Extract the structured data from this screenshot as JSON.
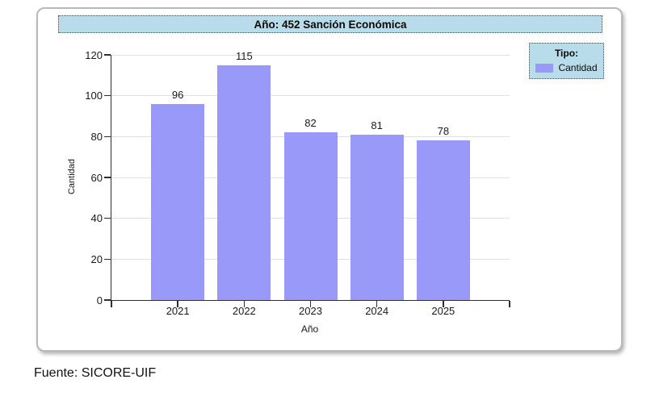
{
  "chart": {
    "title": "Año: 452 Sanción Económica"
  },
  "legend": {
    "title": "Tipo:",
    "items": [
      {
        "label": "Cantidad",
        "color": "#9999fa"
      }
    ]
  },
  "footer": {
    "source": "Fuente: SICORE-UIF"
  },
  "colors": {
    "bar_fill": "#9999fa",
    "panel_blue": "#b9dcea",
    "gridline": "#e0e0e0",
    "axis": "#2f2f2f"
  },
  "chart_data": {
    "type": "bar",
    "title": "Año: 452 Sanción Económica",
    "categories": [
      "2021",
      "2022",
      "2023",
      "2024",
      "2025"
    ],
    "values": [
      96,
      115,
      82,
      81,
      78
    ],
    "series": [
      {
        "name": "Cantidad",
        "values": [
          96,
          115,
          82,
          81,
          78
        ]
      }
    ],
    "xlabel": "Año",
    "ylabel": "Cantidad",
    "ylim": [
      0,
      120
    ],
    "yticks": [
      0,
      20,
      40,
      60,
      80,
      100,
      120
    ],
    "grid": true,
    "legend_position": "top-right",
    "bar_color": "#9999fa"
  }
}
